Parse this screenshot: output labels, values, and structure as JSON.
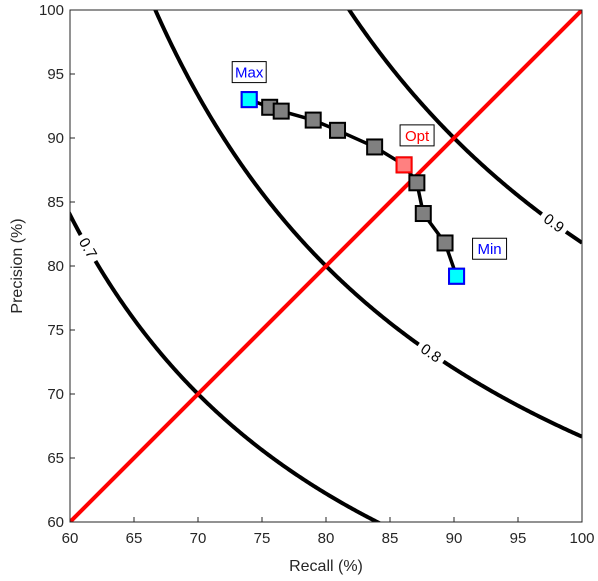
{
  "chart_data": {
    "type": "line",
    "xlabel": "Recall (%)",
    "ylabel": "Precision (%)",
    "xlim": [
      60,
      100
    ],
    "ylim": [
      60,
      100
    ],
    "xticks": [
      60,
      65,
      70,
      75,
      80,
      85,
      90,
      95,
      100
    ],
    "yticks": [
      60,
      65,
      70,
      75,
      80,
      85,
      90,
      95,
      100
    ],
    "grid": false,
    "iso_f_contours": [
      {
        "value": 0.7,
        "label": "0.7",
        "color": "#000000"
      },
      {
        "value": 0.8,
        "label": "0.8",
        "color": "#000000"
      },
      {
        "value": 0.9,
        "label": "0.9",
        "color": "#000000"
      }
    ],
    "diagonal": {
      "x": [
        60,
        100
      ],
      "y": [
        60,
        100
      ],
      "color": "#ff0000"
    },
    "series": [
      {
        "color": "#000000",
        "marker_fill": "#808080",
        "x": [
          74.0,
          75.6,
          76.5,
          79.0,
          80.9,
          83.8,
          86.1,
          87.1,
          87.6,
          89.3,
          90.2
        ],
        "y": [
          93.0,
          92.4,
          92.1,
          91.4,
          90.6,
          89.3,
          87.9,
          86.5,
          84.1,
          81.8,
          79.2
        ]
      }
    ],
    "annotations": [
      {
        "text": "Max",
        "x": 74.0,
        "y": 93.0,
        "marker_fill": "#00ffff",
        "text_color": "#0000ff"
      },
      {
        "text": "Opt",
        "x": 86.1,
        "y": 87.9,
        "marker_fill": "#ff8080",
        "text_color": "#ff0000"
      },
      {
        "text": "Min",
        "x": 90.2,
        "y": 79.2,
        "marker_fill": "#00ffff",
        "text_color": "#0000ff"
      }
    ]
  }
}
